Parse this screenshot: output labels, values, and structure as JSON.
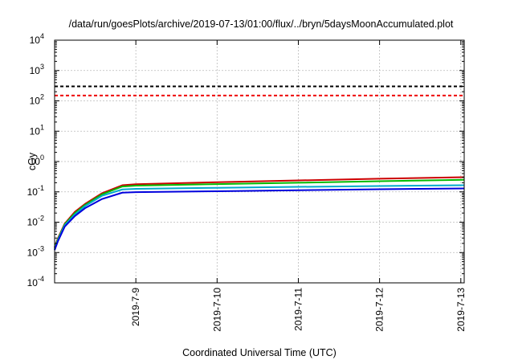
{
  "chart_data": {
    "type": "line",
    "title": "/data/run/goesPlots/archive/2019-07-13/01:00/flux/../bryn/5daysMoonAccumulated.plot",
    "xlabel": "Coordinated Universal Time (UTC)",
    "ylabel": "cGy",
    "y_scale": "log",
    "ylim": [
      0.0001,
      10000
    ],
    "xlim": [
      "2019-07-08T00:00",
      "2019-07-13T01:00"
    ],
    "x_ticks": [
      {
        "value": "2019-07-09T00:00",
        "label": "2019-7-9"
      },
      {
        "value": "2019-07-10T00:00",
        "label": "2019-7-10"
      },
      {
        "value": "2019-07-11T00:00",
        "label": "2019-7-11"
      },
      {
        "value": "2019-07-12T00:00",
        "label": "2019-7-12"
      },
      {
        "value": "2019-07-13T00:00",
        "label": "2019-7-13"
      }
    ],
    "y_ticks": [
      {
        "value": 0.0001,
        "base": "10",
        "exp": "-4"
      },
      {
        "value": 0.001,
        "base": "10",
        "exp": "-3"
      },
      {
        "value": 0.01,
        "base": "10",
        "exp": "-2"
      },
      {
        "value": 0.1,
        "base": "10",
        "exp": "-1"
      },
      {
        "value": 1,
        "base": "10",
        "exp": "0"
      },
      {
        "value": 10,
        "base": "10",
        "exp": "1"
      },
      {
        "value": 100,
        "base": "10",
        "exp": "2"
      },
      {
        "value": 1000,
        "base": "10",
        "exp": "3"
      },
      {
        "value": 10000,
        "base": "10",
        "exp": "4"
      }
    ],
    "grid": true,
    "thresholds": [
      {
        "value": 300,
        "color": "#000000",
        "style": "dashed"
      },
      {
        "value": 150,
        "color": "#ee0000",
        "style": "dashed"
      }
    ],
    "series": [
      {
        "color": "#cc0000",
        "x": [
          "2019-07-08T00:00",
          "2019-07-08T01:00",
          "2019-07-08T03:00",
          "2019-07-08T06:00",
          "2019-07-08T09:00",
          "2019-07-08T14:00",
          "2019-07-08T20:00",
          "2019-07-09T00:00",
          "2019-07-10T00:00",
          "2019-07-11T00:00",
          "2019-07-12T00:00",
          "2019-07-13T01:00"
        ],
        "values": [
          0.0015,
          0.003,
          0.009,
          0.022,
          0.04,
          0.09,
          0.165,
          0.178,
          0.208,
          0.238,
          0.272,
          0.305
        ]
      },
      {
        "color": "#00bb00",
        "x": [
          "2019-07-08T00:00",
          "2019-07-08T01:00",
          "2019-07-08T03:00",
          "2019-07-08T06:00",
          "2019-07-08T09:00",
          "2019-07-08T14:00",
          "2019-07-08T20:00",
          "2019-07-09T00:00",
          "2019-07-10T00:00",
          "2019-07-11T00:00",
          "2019-07-12T00:00",
          "2019-07-13T01:00"
        ],
        "values": [
          0.0014,
          0.0028,
          0.0085,
          0.02,
          0.037,
          0.083,
          0.15,
          0.16,
          0.18,
          0.2,
          0.225,
          0.25
        ]
      },
      {
        "color": "#00aacc",
        "x": [
          "2019-07-08T00:00",
          "2019-07-08T01:00",
          "2019-07-08T03:00",
          "2019-07-08T06:00",
          "2019-07-08T09:00",
          "2019-07-08T14:00",
          "2019-07-08T20:00",
          "2019-07-09T00:00",
          "2019-07-10T00:00",
          "2019-07-11T00:00",
          "2019-07-12T00:00",
          "2019-07-13T01:00"
        ],
        "values": [
          0.0013,
          0.0026,
          0.008,
          0.018,
          0.034,
          0.074,
          0.12,
          0.126,
          0.136,
          0.146,
          0.156,
          0.166
        ]
      },
      {
        "color": "#0000dd",
        "x": [
          "2019-07-08T00:00",
          "2019-07-08T01:00",
          "2019-07-08T03:00",
          "2019-07-08T06:00",
          "2019-07-08T09:00",
          "2019-07-08T14:00",
          "2019-07-08T20:00",
          "2019-07-09T00:00",
          "2019-07-10T00:00",
          "2019-07-11T00:00",
          "2019-07-12T00:00",
          "2019-07-13T01:00"
        ],
        "values": [
          0.0012,
          0.0024,
          0.0072,
          0.016,
          0.029,
          0.058,
          0.094,
          0.098,
          0.105,
          0.113,
          0.122,
          0.13
        ]
      }
    ]
  }
}
